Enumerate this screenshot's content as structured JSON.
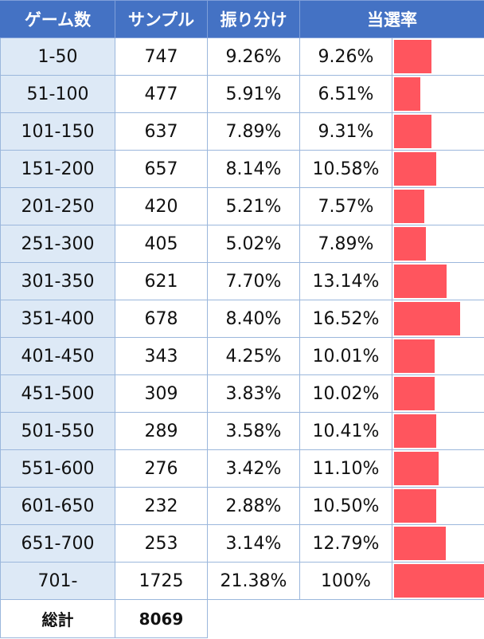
{
  "headers": {
    "games": "ゲーム数",
    "samples": "サンプル",
    "distribution": "振り分け",
    "win_rate": "当選率"
  },
  "rows": [
    {
      "games": "1-50",
      "samples": "747",
      "distribution": "9.26%",
      "win_rate": "9.26%",
      "rate_value": 9.26
    },
    {
      "games": "51-100",
      "samples": "477",
      "distribution": "5.91%",
      "win_rate": "6.51%",
      "rate_value": 6.51
    },
    {
      "games": "101-150",
      "samples": "637",
      "distribution": "7.89%",
      "win_rate": "9.31%",
      "rate_value": 9.31
    },
    {
      "games": "151-200",
      "samples": "657",
      "distribution": "8.14%",
      "win_rate": "10.58%",
      "rate_value": 10.58
    },
    {
      "games": "201-250",
      "samples": "420",
      "distribution": "5.21%",
      "win_rate": "7.57%",
      "rate_value": 7.57
    },
    {
      "games": "251-300",
      "samples": "405",
      "distribution": "5.02%",
      "win_rate": "7.89%",
      "rate_value": 7.89
    },
    {
      "games": "301-350",
      "samples": "621",
      "distribution": "7.70%",
      "win_rate": "13.14%",
      "rate_value": 13.14
    },
    {
      "games": "351-400",
      "samples": "678",
      "distribution": "8.40%",
      "win_rate": "16.52%",
      "rate_value": 16.52
    },
    {
      "games": "401-450",
      "samples": "343",
      "distribution": "4.25%",
      "win_rate": "10.01%",
      "rate_value": 10.01
    },
    {
      "games": "451-500",
      "samples": "309",
      "distribution": "3.83%",
      "win_rate": "10.02%",
      "rate_value": 10.02
    },
    {
      "games": "501-550",
      "samples": "289",
      "distribution": "3.58%",
      "win_rate": "10.41%",
      "rate_value": 10.41
    },
    {
      "games": "551-600",
      "samples": "276",
      "distribution": "3.42%",
      "win_rate": "11.10%",
      "rate_value": 11.1
    },
    {
      "games": "601-650",
      "samples": "232",
      "distribution": "2.88%",
      "win_rate": "10.50%",
      "rate_value": 10.5
    },
    {
      "games": "651-700",
      "samples": "253",
      "distribution": "3.14%",
      "win_rate": "12.79%",
      "rate_value": 12.79
    },
    {
      "games": "701-",
      "samples": "1725",
      "distribution": "21.38%",
      "win_rate": "100%",
      "rate_value": 100
    }
  ],
  "total": {
    "label": "総計",
    "samples": "8069"
  },
  "colors": {
    "header_bg": "#4472c4",
    "bar": "#ff555e",
    "games_col_bg": "#dde9f6"
  }
}
